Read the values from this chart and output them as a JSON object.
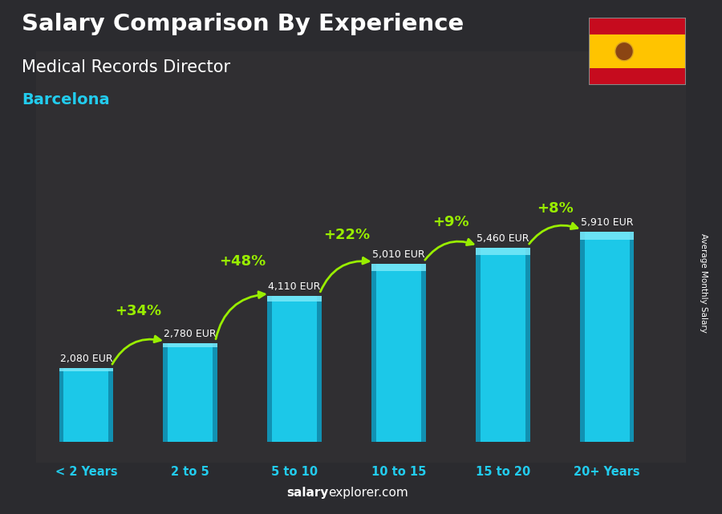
{
  "title_line1": "Salary Comparison By Experience",
  "title_line2": "Medical Records Director",
  "title_line3": "Barcelona",
  "categories": [
    "< 2 Years",
    "2 to 5",
    "5 to 10",
    "10 to 15",
    "15 to 20",
    "20+ Years"
  ],
  "values": [
    2080,
    2780,
    4110,
    5010,
    5460,
    5910
  ],
  "value_labels": [
    "2,080 EUR",
    "2,780 EUR",
    "4,110 EUR",
    "5,010 EUR",
    "5,460 EUR",
    "5,910 EUR"
  ],
  "pct_labels": [
    "+34%",
    "+48%",
    "+22%",
    "+9%",
    "+8%"
  ],
  "bar_color_main": "#1CC8E8",
  "bar_color_dark": "#0E7FA0",
  "bar_color_light": "#7AE8F8",
  "title_color": "#FFFFFF",
  "subtitle_color": "#FFFFFF",
  "city_color": "#22CCEE",
  "value_label_color": "#FFFFFF",
  "pct_color": "#99EE00",
  "xcat_color": "#22CCEE",
  "footer_salary_color": "#FFFFFF",
  "footer_explorer_color": "#AAAAAA",
  "right_label": "Average Monthly Salary",
  "bg_overlay_color": "#2a2a3a",
  "ylim_max": 7500
}
